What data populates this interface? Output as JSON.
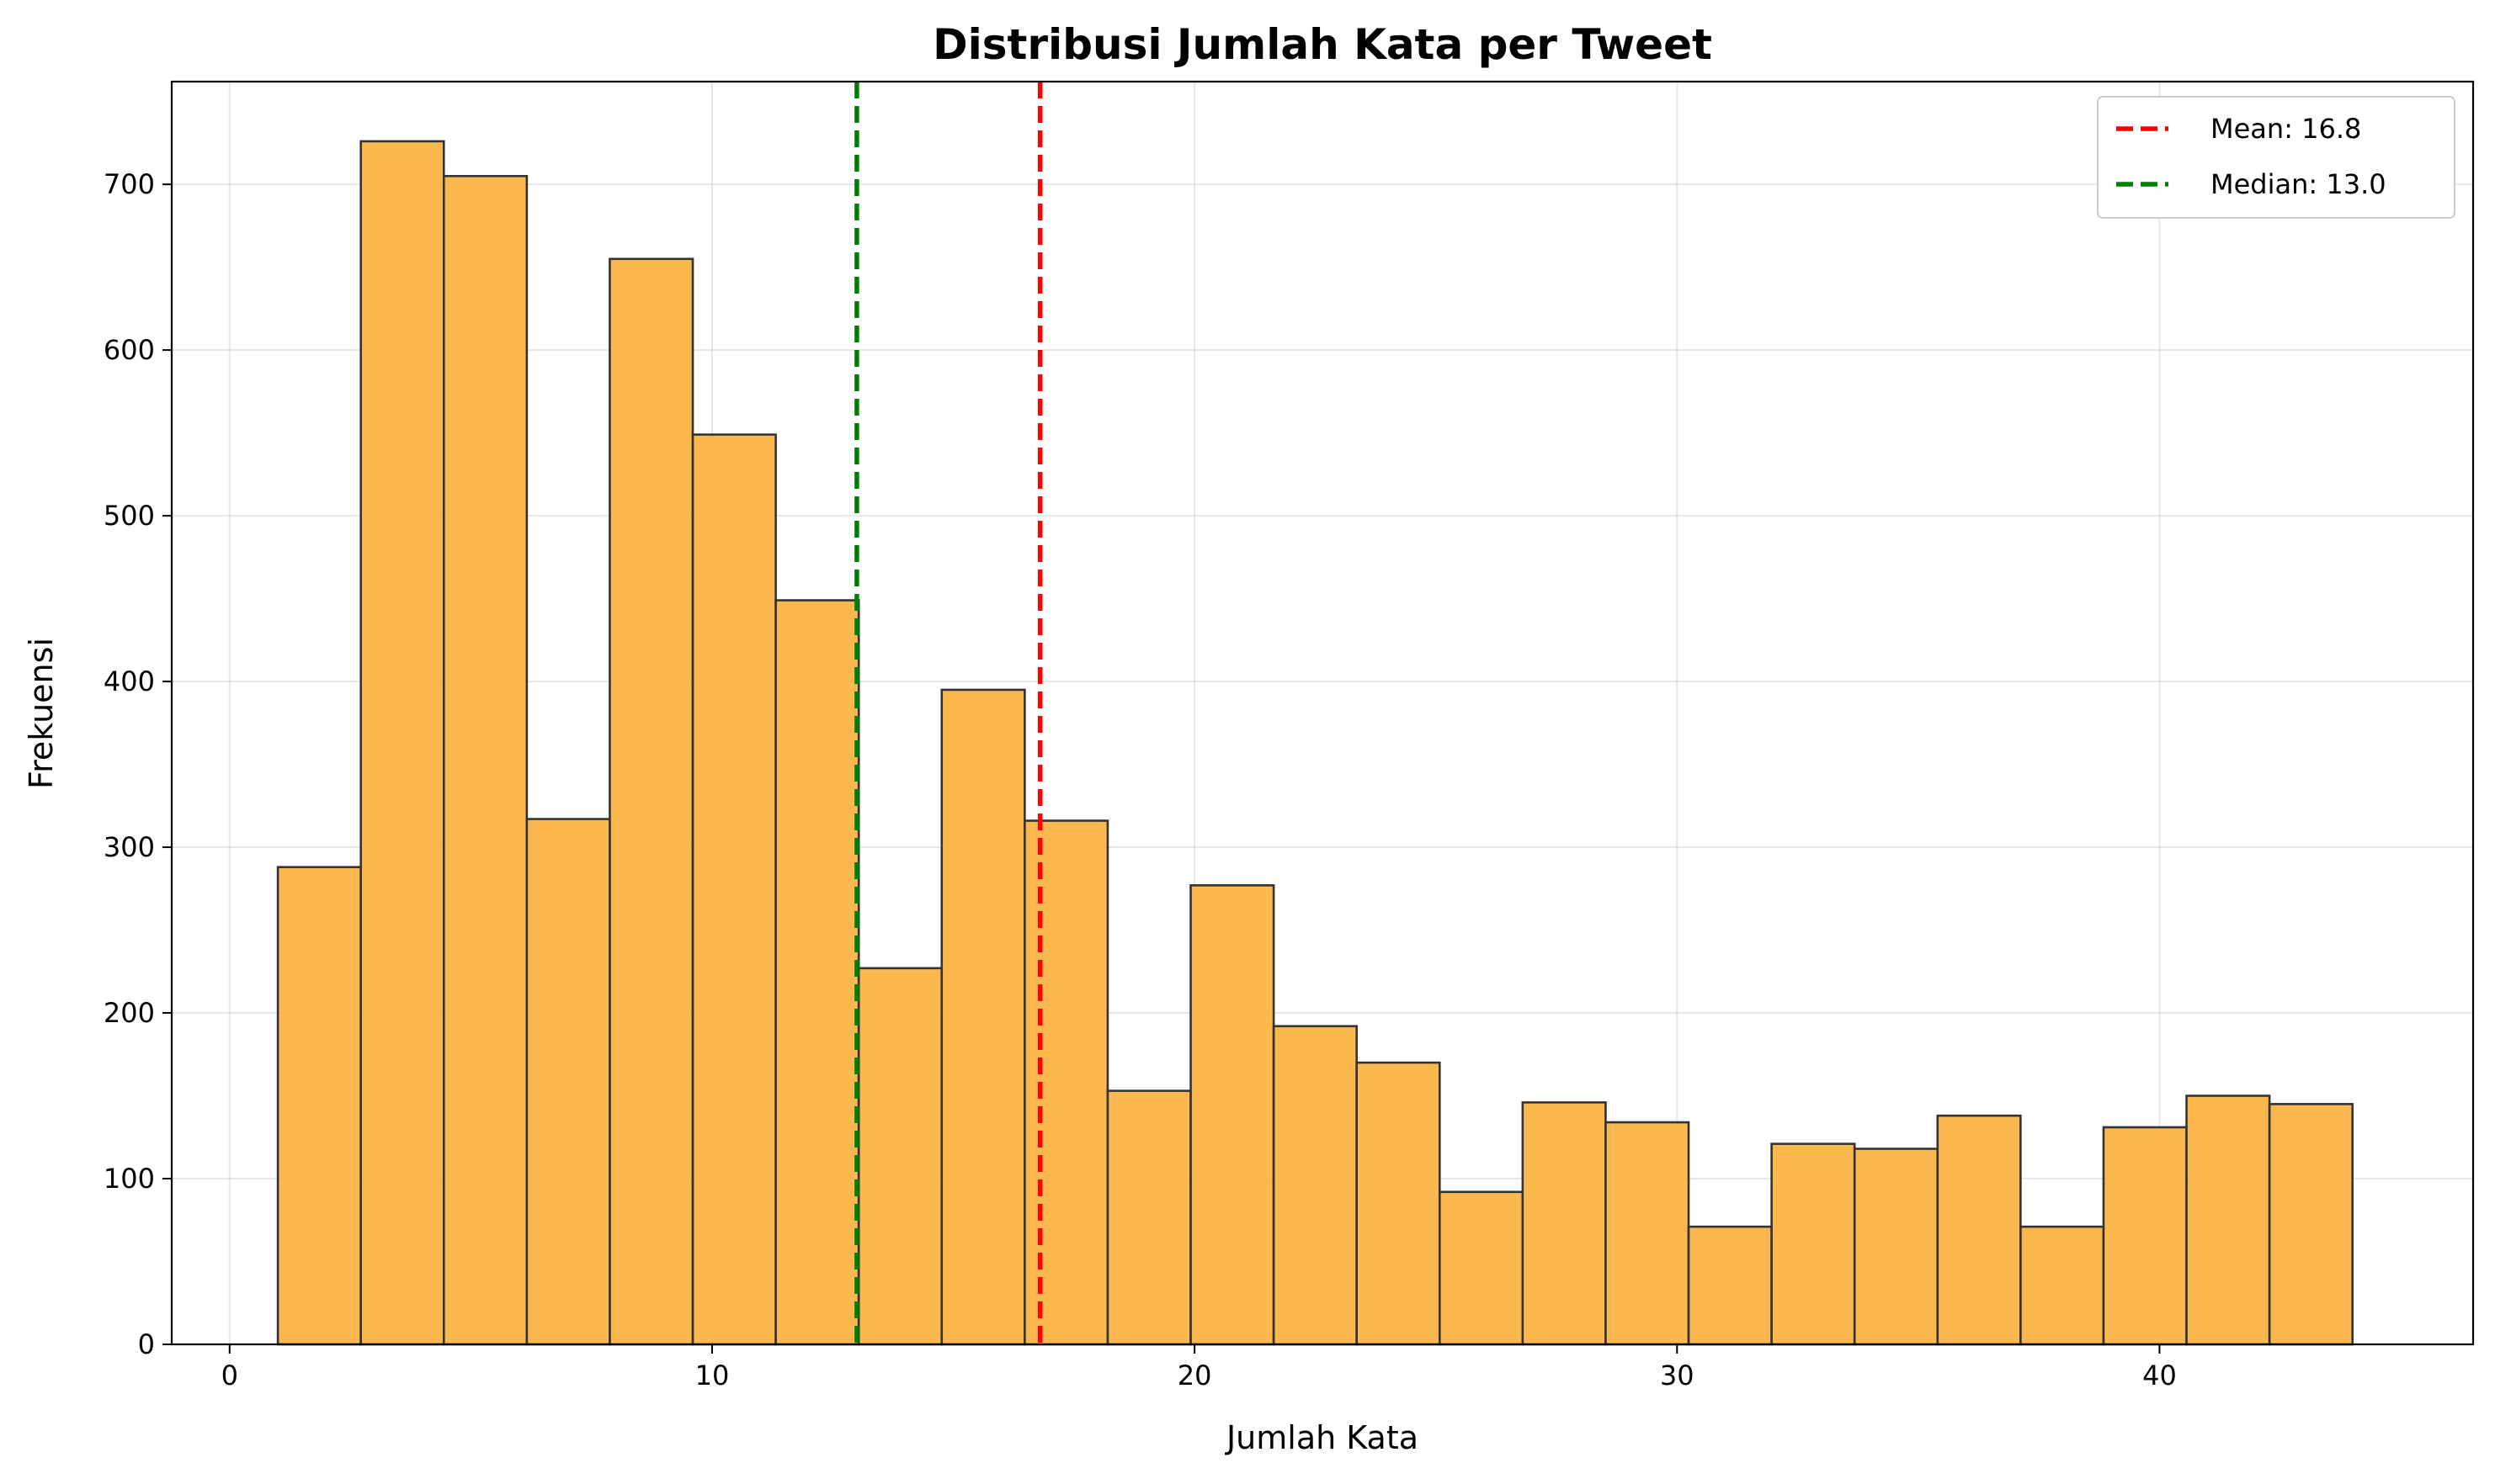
{
  "chart_data": {
    "type": "bar",
    "title": "Distribusi Jumlah Kata per Tweet",
    "xlabel": "Jumlah Kata",
    "ylabel": "Frekuensi",
    "xlim": [
      -1.2,
      46.5
    ],
    "ylim": [
      0,
      762
    ],
    "xticks": [
      0,
      10,
      20,
      30,
      40
    ],
    "yticks": [
      0,
      100,
      200,
      300,
      400,
      500,
      600,
      700
    ],
    "grid": true,
    "bar_color": "#fbb03b",
    "bar_edge_color": "#333333",
    "bins": [
      {
        "start": 1.0,
        "end": 2.72,
        "value": 288
      },
      {
        "start": 2.72,
        "end": 4.44,
        "value": 726
      },
      {
        "start": 4.44,
        "end": 6.16,
        "value": 705
      },
      {
        "start": 6.16,
        "end": 7.88,
        "value": 317
      },
      {
        "start": 7.88,
        "end": 9.6,
        "value": 655
      },
      {
        "start": 9.6,
        "end": 11.32,
        "value": 549
      },
      {
        "start": 11.32,
        "end": 13.04,
        "value": 449
      },
      {
        "start": 13.04,
        "end": 14.76,
        "value": 227
      },
      {
        "start": 14.76,
        "end": 16.48,
        "value": 395
      },
      {
        "start": 16.48,
        "end": 18.2,
        "value": 316
      },
      {
        "start": 18.2,
        "end": 19.92,
        "value": 153
      },
      {
        "start": 19.92,
        "end": 21.64,
        "value": 277
      },
      {
        "start": 21.64,
        "end": 23.36,
        "value": 192
      },
      {
        "start": 23.36,
        "end": 25.08,
        "value": 170
      },
      {
        "start": 25.08,
        "end": 26.8,
        "value": 92
      },
      {
        "start": 26.8,
        "end": 28.52,
        "value": 146
      },
      {
        "start": 28.52,
        "end": 30.24,
        "value": 134
      },
      {
        "start": 30.24,
        "end": 31.96,
        "value": 71
      },
      {
        "start": 31.96,
        "end": 33.68,
        "value": 121
      },
      {
        "start": 33.68,
        "end": 35.4,
        "value": 118
      },
      {
        "start": 35.4,
        "end": 37.12,
        "value": 138
      },
      {
        "start": 37.12,
        "end": 38.84,
        "value": 71
      },
      {
        "start": 38.84,
        "end": 40.56,
        "value": 131
      },
      {
        "start": 40.56,
        "end": 42.28,
        "value": 150
      },
      {
        "start": 42.28,
        "end": 44.0,
        "value": 145
      }
    ],
    "reference_lines": [
      {
        "label": "Mean: 16.8",
        "value": 16.8,
        "color": "#ff0000"
      },
      {
        "label": "Median: 13.0",
        "value": 13.0,
        "color": "#008000"
      }
    ],
    "legend_position": "top-right"
  }
}
